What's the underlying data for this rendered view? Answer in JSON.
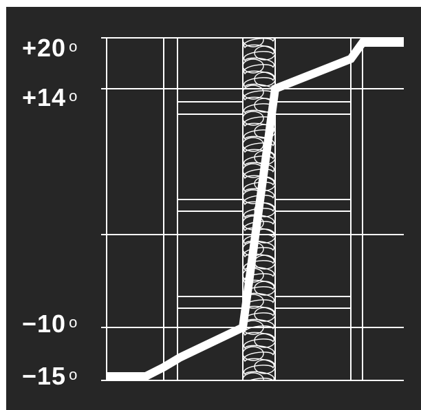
{
  "labels": {
    "t20": "+20",
    "t14": "+14",
    "tm10": "−10",
    "tm15": "−15",
    "degree": "o"
  },
  "chart_data": {
    "type": "line",
    "title": "",
    "xlabel": "",
    "ylabel": "",
    "y_ticks": [
      "+20",
      "+14",
      "−10",
      "−15"
    ],
    "grid": true,
    "series": [
      {
        "values": [
          -15,
          -15,
          -14,
          -13,
          -10,
          14,
          17,
          19,
          20,
          20
        ]
      }
    ],
    "colors": {
      "background": "#262626",
      "lines": "#ffffff"
    }
  }
}
